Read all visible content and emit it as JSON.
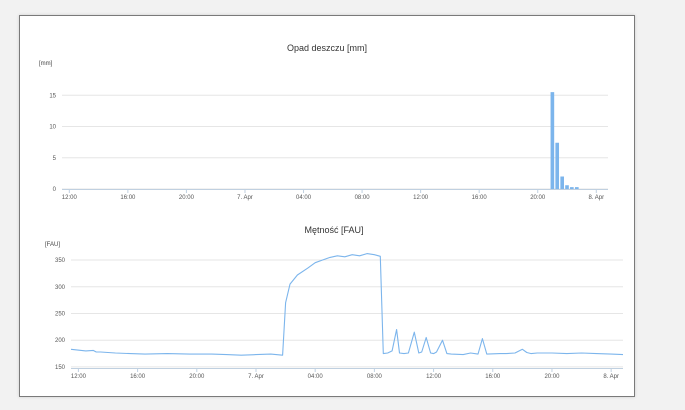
{
  "chart_data": [
    {
      "type": "bar",
      "title": "Opad deszczu [mm]",
      "ylabel": "[mm]",
      "x_tick_labels": [
        "12:00",
        "16:00",
        "20:00",
        "7. Apr",
        "04:00",
        "08:00",
        "12:00",
        "16:00",
        "20:00",
        "8. Apr"
      ],
      "y_ticks": [
        0,
        5,
        10,
        15
      ],
      "ylim": [
        0,
        20
      ],
      "grid": true,
      "bar_color": "#7cb5ec",
      "time_unit": "hours",
      "x_ticks_hours": [
        12,
        16,
        20,
        24,
        28,
        32,
        36,
        40,
        44,
        48
      ],
      "xlim_hours": [
        11.5,
        48.8
      ],
      "bars": [
        {
          "x": 45.0,
          "value": 15.5
        },
        {
          "x": 45.33,
          "value": 7.4
        },
        {
          "x": 45.67,
          "value": 2.0
        },
        {
          "x": 46.0,
          "value": 0.6
        },
        {
          "x": 46.33,
          "value": 0.3
        },
        {
          "x": 46.67,
          "value": 0.3
        }
      ]
    },
    {
      "type": "line",
      "title": "Mętność [FAU]",
      "ylabel": "[FAU]",
      "x_tick_labels": [
        "12:00",
        "16:00",
        "20:00",
        "7. Apr",
        "04:00",
        "08:00",
        "12:00",
        "16:00",
        "20:00",
        "8. Apr"
      ],
      "y_ticks": [
        150,
        200,
        250,
        300,
        350
      ],
      "ylim": [
        148,
        380
      ],
      "grid": true,
      "line_color": "#7cb5ec",
      "time_unit": "hours",
      "x_ticks_hours": [
        12,
        16,
        20,
        24,
        28,
        32,
        36,
        40,
        44,
        48
      ],
      "xlim_hours": [
        11.5,
        48.8
      ],
      "series": [
        {
          "x": [
            11.5,
            12.5,
            13.0,
            13.2,
            13.5,
            14.5,
            15.5,
            16.5,
            18.0,
            19.5,
            21.0,
            22.0,
            23.0,
            24.0,
            25.0,
            25.8,
            26.0,
            26.3,
            26.8,
            27.5,
            28.0,
            28.5,
            29.0,
            29.5,
            30.0,
            30.5,
            31.0,
            31.5,
            32.0,
            32.4,
            32.6,
            32.9,
            33.2,
            33.5,
            33.7,
            34.0,
            34.3,
            34.7,
            35.0,
            35.2,
            35.5,
            35.8,
            36.0,
            36.2,
            36.6,
            36.9,
            37.2,
            38.0,
            38.5,
            39.0,
            39.3,
            39.6,
            40.5,
            40.7,
            40.9,
            41.5,
            42.0,
            42.3,
            42.6,
            43.0,
            44.0,
            45.0,
            46.0,
            47.0,
            48.0,
            48.8
          ],
          "y": [
            183,
            180,
            181,
            178,
            178,
            176,
            175,
            174,
            175,
            174,
            174,
            173,
            172,
            173,
            174,
            172,
            270,
            305,
            322,
            335,
            345,
            350,
            355,
            358,
            356,
            360,
            358,
            362,
            360,
            357,
            175,
            176,
            180,
            220,
            176,
            175,
            176,
            215,
            176,
            178,
            205,
            176,
            175,
            178,
            200,
            175,
            174,
            173,
            176,
            174,
            203,
            174,
            175,
            175,
            175,
            176,
            183,
            177,
            175,
            176,
            176,
            175,
            176,
            175,
            174,
            173
          ]
        }
      ]
    }
  ]
}
